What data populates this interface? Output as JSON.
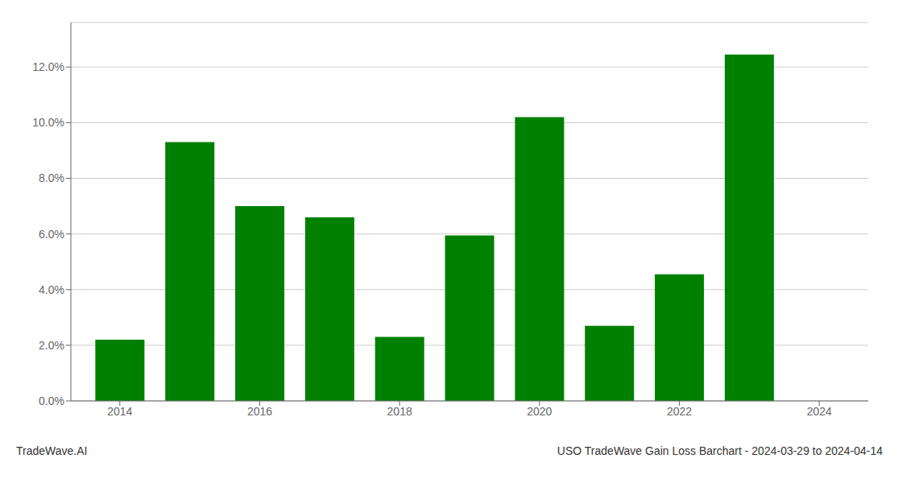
{
  "chart_data": {
    "type": "bar",
    "x": [
      2014,
      2015,
      2016,
      2017,
      2018,
      2019,
      2020,
      2021,
      2022,
      2023
    ],
    "values": [
      0.022,
      0.093,
      0.07,
      0.066,
      0.023,
      0.0595,
      0.102,
      0.027,
      0.0455,
      0.1245
    ],
    "color": "#008000",
    "xlim": [
      2013.3,
      2024.7
    ],
    "ylim": [
      0.0,
      0.136
    ],
    "xticks": [
      2014,
      2016,
      2018,
      2020,
      2022,
      2024
    ],
    "yticks": [
      {
        "value": 0.0,
        "label": "0.0%"
      },
      {
        "value": 0.02,
        "label": "2.0%"
      },
      {
        "value": 0.04,
        "label": "4.0%"
      },
      {
        "value": 0.06,
        "label": "6.0%"
      },
      {
        "value": 0.08,
        "label": "8.0%"
      },
      {
        "value": 0.1,
        "label": "10.0%"
      },
      {
        "value": 0.12,
        "label": "12.0%"
      }
    ],
    "grid": true,
    "annotations": [
      "TradeWave.AI",
      "USO TradeWave Gain Loss Barchart - 2024-03-29 to 2024-04-14"
    ]
  }
}
